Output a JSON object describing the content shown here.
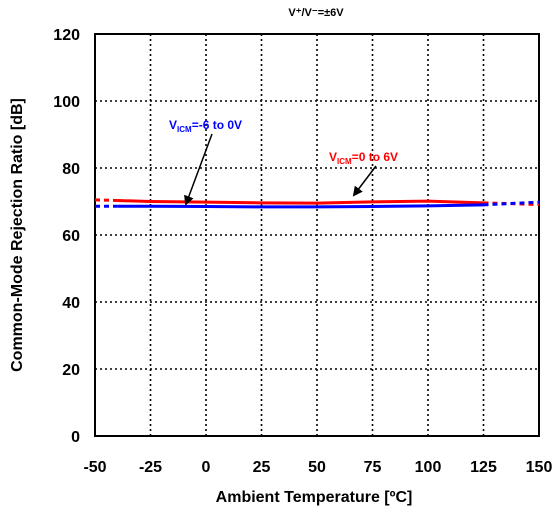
{
  "chart_data": {
    "type": "line",
    "title": "V⁺/V⁻=±6V",
    "xlabel": "Ambient Temperature [ºC]",
    "ylabel": "Common-Mode Rejection Ratio [dB]",
    "xlim": [
      -50,
      150
    ],
    "ylim": [
      0,
      120
    ],
    "xticks": [
      "-50",
      "-25",
      "0",
      "25",
      "50",
      "75",
      "100",
      "125",
      "150"
    ],
    "yticks": [
      "0",
      "20",
      "40",
      "60",
      "80",
      "100",
      "120"
    ],
    "grid": true,
    "colors": {
      "series0": "#ff0000",
      "series1": "#0000ff",
      "grid": "#000000"
    },
    "series": [
      {
        "x": [
          -40,
          -25,
          0,
          25,
          50,
          75,
          100,
          125
        ],
        "y": [
          70.3,
          70.0,
          69.8,
          69.6,
          69.5,
          69.9,
          70.1,
          69.6
        ],
        "extrapolated": {
          "x": [
            -50,
            -40
          ],
          "y": [
            70.5,
            70.3
          ],
          "x2": [
            125,
            150
          ],
          "y2": [
            69.6,
            69.1
          ]
        }
      },
      {
        "x": [
          -40,
          -25,
          0,
          25,
          50,
          75,
          100,
          125
        ],
        "y": [
          68.6,
          68.6,
          68.5,
          68.4,
          68.4,
          68.5,
          68.7,
          69.0
        ],
        "extrapolated": {
          "x": [
            -50,
            -40
          ],
          "y": [
            68.6,
            68.6
          ],
          "x2": [
            125,
            150
          ],
          "y2": [
            69.0,
            69.8
          ]
        }
      }
    ],
    "annotations": [
      {
        "main": "V",
        "sub": "ICM",
        "rest": "=0 to 6V",
        "color": "#ff0000"
      },
      {
        "main": "V",
        "sub": "ICM",
        "rest": "=-6 to 0V",
        "color": "#0000ff"
      }
    ]
  }
}
